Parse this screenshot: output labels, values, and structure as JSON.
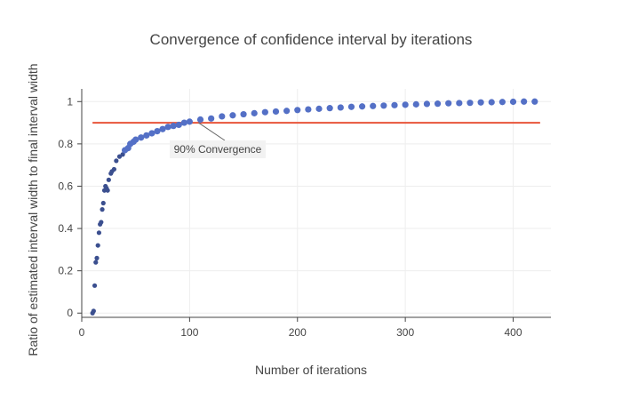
{
  "chart_data": {
    "type": "scatter",
    "title": "Convergence of confidence interval by iterations",
    "xlabel": "Number of iterations",
    "ylabel": "Ratio of estimated interval width to final interval width",
    "xlim": [
      0,
      435
    ],
    "ylim": [
      -0.02,
      1.06
    ],
    "xticks": [
      0,
      100,
      200,
      300,
      400
    ],
    "yticks": [
      0,
      0.2,
      0.4,
      0.6,
      0.8,
      1
    ],
    "ytick_labels": [
      "0",
      "0.2",
      "0.4",
      "0.6",
      "0.8",
      "1"
    ],
    "grid": true,
    "threshold": {
      "y": 0.9,
      "x_start": 10,
      "x_end": 425,
      "color": "#e8553a"
    },
    "annotation": {
      "text": "90% Convergence",
      "x": 100,
      "y": 0.9
    },
    "series": [
      {
        "color": "#5470c6",
        "points": [
          [
            10,
            0.0
          ],
          [
            11,
            0.01
          ],
          [
            12,
            0.13
          ],
          [
            13,
            0.24
          ],
          [
            14,
            0.26
          ],
          [
            15,
            0.32
          ],
          [
            16,
            0.38
          ],
          [
            17,
            0.42
          ],
          [
            18,
            0.43
          ],
          [
            19,
            0.49
          ],
          [
            20,
            0.52
          ],
          [
            21,
            0.58
          ],
          [
            22,
            0.6
          ],
          [
            23,
            0.59
          ],
          [
            24,
            0.58
          ],
          [
            25,
            0.63
          ],
          [
            27,
            0.66
          ],
          [
            28,
            0.67
          ],
          [
            30,
            0.68
          ],
          [
            32,
            0.72
          ],
          [
            35,
            0.74
          ],
          [
            38,
            0.75
          ],
          [
            40,
            0.77
          ],
          [
            43,
            0.78
          ],
          [
            45,
            0.8
          ],
          [
            48,
            0.81
          ],
          [
            50,
            0.82
          ],
          [
            55,
            0.83
          ],
          [
            60,
            0.84
          ],
          [
            65,
            0.85
          ],
          [
            70,
            0.86
          ],
          [
            75,
            0.87
          ],
          [
            80,
            0.88
          ],
          [
            85,
            0.885
          ],
          [
            90,
            0.89
          ],
          [
            95,
            0.9
          ],
          [
            100,
            0.905
          ],
          [
            110,
            0.915
          ],
          [
            120,
            0.92
          ],
          [
            130,
            0.93
          ],
          [
            140,
            0.935
          ],
          [
            150,
            0.94
          ],
          [
            160,
            0.945
          ],
          [
            170,
            0.95
          ],
          [
            180,
            0.953
          ],
          [
            190,
            0.956
          ],
          [
            200,
            0.96
          ],
          [
            210,
            0.963
          ],
          [
            220,
            0.966
          ],
          [
            230,
            0.969
          ],
          [
            240,
            0.972
          ],
          [
            250,
            0.975
          ],
          [
            260,
            0.977
          ],
          [
            270,
            0.979
          ],
          [
            280,
            0.981
          ],
          [
            290,
            0.983
          ],
          [
            300,
            0.985
          ],
          [
            310,
            0.987
          ],
          [
            320,
            0.989
          ],
          [
            330,
            0.99
          ],
          [
            340,
            0.992
          ],
          [
            350,
            0.993
          ],
          [
            360,
            0.994
          ],
          [
            370,
            0.996
          ],
          [
            380,
            0.997
          ],
          [
            390,
            0.998
          ],
          [
            400,
            0.999
          ],
          [
            410,
            1.0
          ],
          [
            420,
            1.0
          ]
        ]
      }
    ]
  }
}
